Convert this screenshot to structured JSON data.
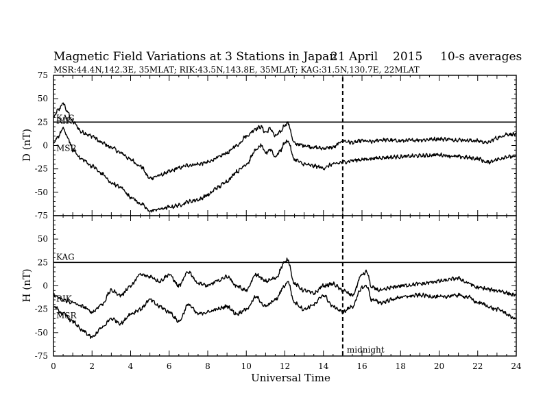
{
  "header": {
    "title": "Magnetic Field Variations at 3 Stations in Japan",
    "date": "21  April",
    "year": "2015",
    "averaging": "10-s averages",
    "stations_line": "MSR:44.4N,142.3E, 35MLAT;  RIK:43.5N,143.8E, 35MLAT;  KAG:31.5N,130.7E, 22MLAT"
  },
  "chart_data": [
    {
      "type": "line",
      "panel": "top",
      "ylabel": "D (nT)",
      "ylim": [
        -75,
        75
      ],
      "yticks": [
        75,
        50,
        25,
        0,
        -25,
        -50,
        -75
      ],
      "xlim": [
        0,
        24
      ],
      "grid": false,
      "series": [
        {
          "name": "KAG",
          "x": [
            0,
            24
          ],
          "values": [
            25,
            25
          ]
        },
        {
          "name": "RIK",
          "x": [
            0,
            0.25,
            0.5,
            0.75,
            1,
            1.5,
            2,
            2.5,
            3,
            3.5,
            4,
            4.5,
            5,
            5.5,
            6,
            6.5,
            7,
            7.5,
            8,
            8.5,
            9,
            9.5,
            10,
            10.5,
            10.75,
            11,
            11.25,
            11.5,
            11.75,
            12,
            12.15,
            12.5,
            13,
            13.5,
            14,
            14.5,
            15,
            15.5,
            16,
            16.5,
            17,
            18,
            19,
            20,
            21,
            22,
            22.5,
            23,
            23.5,
            24
          ],
          "values": [
            30,
            38,
            45,
            35,
            25,
            14,
            10,
            3,
            -2,
            -8,
            -15,
            -22,
            -35,
            -32,
            -28,
            -24,
            -21,
            -20,
            -18,
            -13,
            -8,
            0,
            10,
            18,
            20,
            14,
            18,
            10,
            14,
            22,
            24,
            2,
            0,
            -2,
            -3,
            -2,
            5,
            3,
            5,
            4,
            6,
            5,
            6,
            7,
            6,
            5,
            3,
            8,
            12,
            12
          ]
        },
        {
          "name": "MSR",
          "x": [
            0,
            0.25,
            0.5,
            0.75,
            1,
            1.5,
            2,
            2.5,
            3,
            3.5,
            4,
            4.5,
            5,
            5.5,
            6,
            6.5,
            7,
            7.5,
            8,
            8.5,
            9,
            9.5,
            10,
            10.5,
            10.75,
            11,
            11.25,
            11.5,
            11.75,
            12,
            12.15,
            12.5,
            13,
            13.5,
            14,
            14.5,
            15,
            15.5,
            16,
            16.5,
            17,
            18,
            19,
            20,
            21,
            22,
            22.5,
            23,
            23.5,
            24
          ],
          "values": [
            2,
            10,
            18,
            8,
            -5,
            -15,
            -22,
            -30,
            -40,
            -45,
            -55,
            -62,
            -70,
            -68,
            -66,
            -64,
            -60,
            -58,
            -53,
            -45,
            -38,
            -28,
            -20,
            -5,
            0,
            -8,
            -4,
            -12,
            -6,
            3,
            5,
            -15,
            -20,
            -22,
            -24,
            -20,
            -18,
            -16,
            -15,
            -14,
            -13,
            -12,
            -11,
            -10,
            -12,
            -14,
            -18,
            -15,
            -12,
            -12
          ]
        }
      ]
    },
    {
      "type": "line",
      "panel": "bottom",
      "ylabel": "H (nT)",
      "xlabel": "Universal Time",
      "ylim": [
        -75,
        75
      ],
      "yticks": [
        75,
        50,
        25,
        0,
        -25,
        -50,
        -75
      ],
      "xlim": [
        0,
        24
      ],
      "xticks": [
        0,
        2,
        4,
        6,
        8,
        10,
        12,
        14,
        16,
        18,
        20,
        22,
        24
      ],
      "grid": false,
      "series": [
        {
          "name": "KAG",
          "x": [
            0,
            24
          ],
          "values": [
            25,
            25
          ]
        },
        {
          "name": "RIK",
          "x": [
            0,
            0.5,
            1,
            1.5,
            2,
            2.5,
            3,
            3.5,
            4,
            4.5,
            5,
            5.5,
            6,
            6.5,
            7,
            7.5,
            8,
            8.5,
            9,
            9.5,
            10,
            10.5,
            11,
            11.5,
            12,
            12.15,
            12.5,
            13,
            13.5,
            14,
            14.5,
            15,
            15.5,
            16,
            16.25,
            16.5,
            17,
            17.5,
            18,
            19,
            20,
            21,
            21.5,
            22,
            23,
            24
          ],
          "values": [
            -10,
            -15,
            -18,
            -22,
            -28,
            -20,
            -5,
            -10,
            0,
            12,
            10,
            5,
            12,
            0,
            15,
            3,
            0,
            5,
            10,
            0,
            -5,
            12,
            5,
            8,
            25,
            28,
            2,
            -5,
            -8,
            0,
            2,
            -5,
            -10,
            12,
            15,
            -2,
            -5,
            -2,
            0,
            2,
            5,
            8,
            3,
            -2,
            -5,
            -10
          ]
        },
        {
          "name": "MSR",
          "x": [
            0,
            0.5,
            1,
            1.5,
            2,
            2.5,
            3,
            3.5,
            4,
            4.5,
            5,
            5.5,
            6,
            6.5,
            7,
            7.5,
            8,
            8.5,
            9,
            9.5,
            10,
            10.5,
            11,
            11.5,
            12,
            12.15,
            12.5,
            13,
            13.5,
            14,
            14.5,
            15,
            15.5,
            16,
            16.25,
            16.5,
            17,
            17.5,
            18,
            19,
            20,
            21,
            21.5,
            22,
            23,
            24
          ],
          "values": [
            -22,
            -30,
            -38,
            -48,
            -55,
            -45,
            -35,
            -40,
            -30,
            -25,
            -15,
            -22,
            -28,
            -38,
            -20,
            -30,
            -28,
            -25,
            -22,
            -30,
            -25,
            -12,
            -22,
            -15,
            0,
            5,
            -18,
            -25,
            -20,
            -10,
            -22,
            -28,
            -22,
            -2,
            0,
            -15,
            -18,
            -15,
            -12,
            -10,
            -12,
            -10,
            -12,
            -18,
            -25,
            -35
          ]
        }
      ]
    }
  ],
  "annotations": {
    "midnight_ut": 15,
    "midnight_label": "midnight",
    "kag_label": "KAG",
    "rik_label": "RIK",
    "msr_label": "MSR"
  }
}
